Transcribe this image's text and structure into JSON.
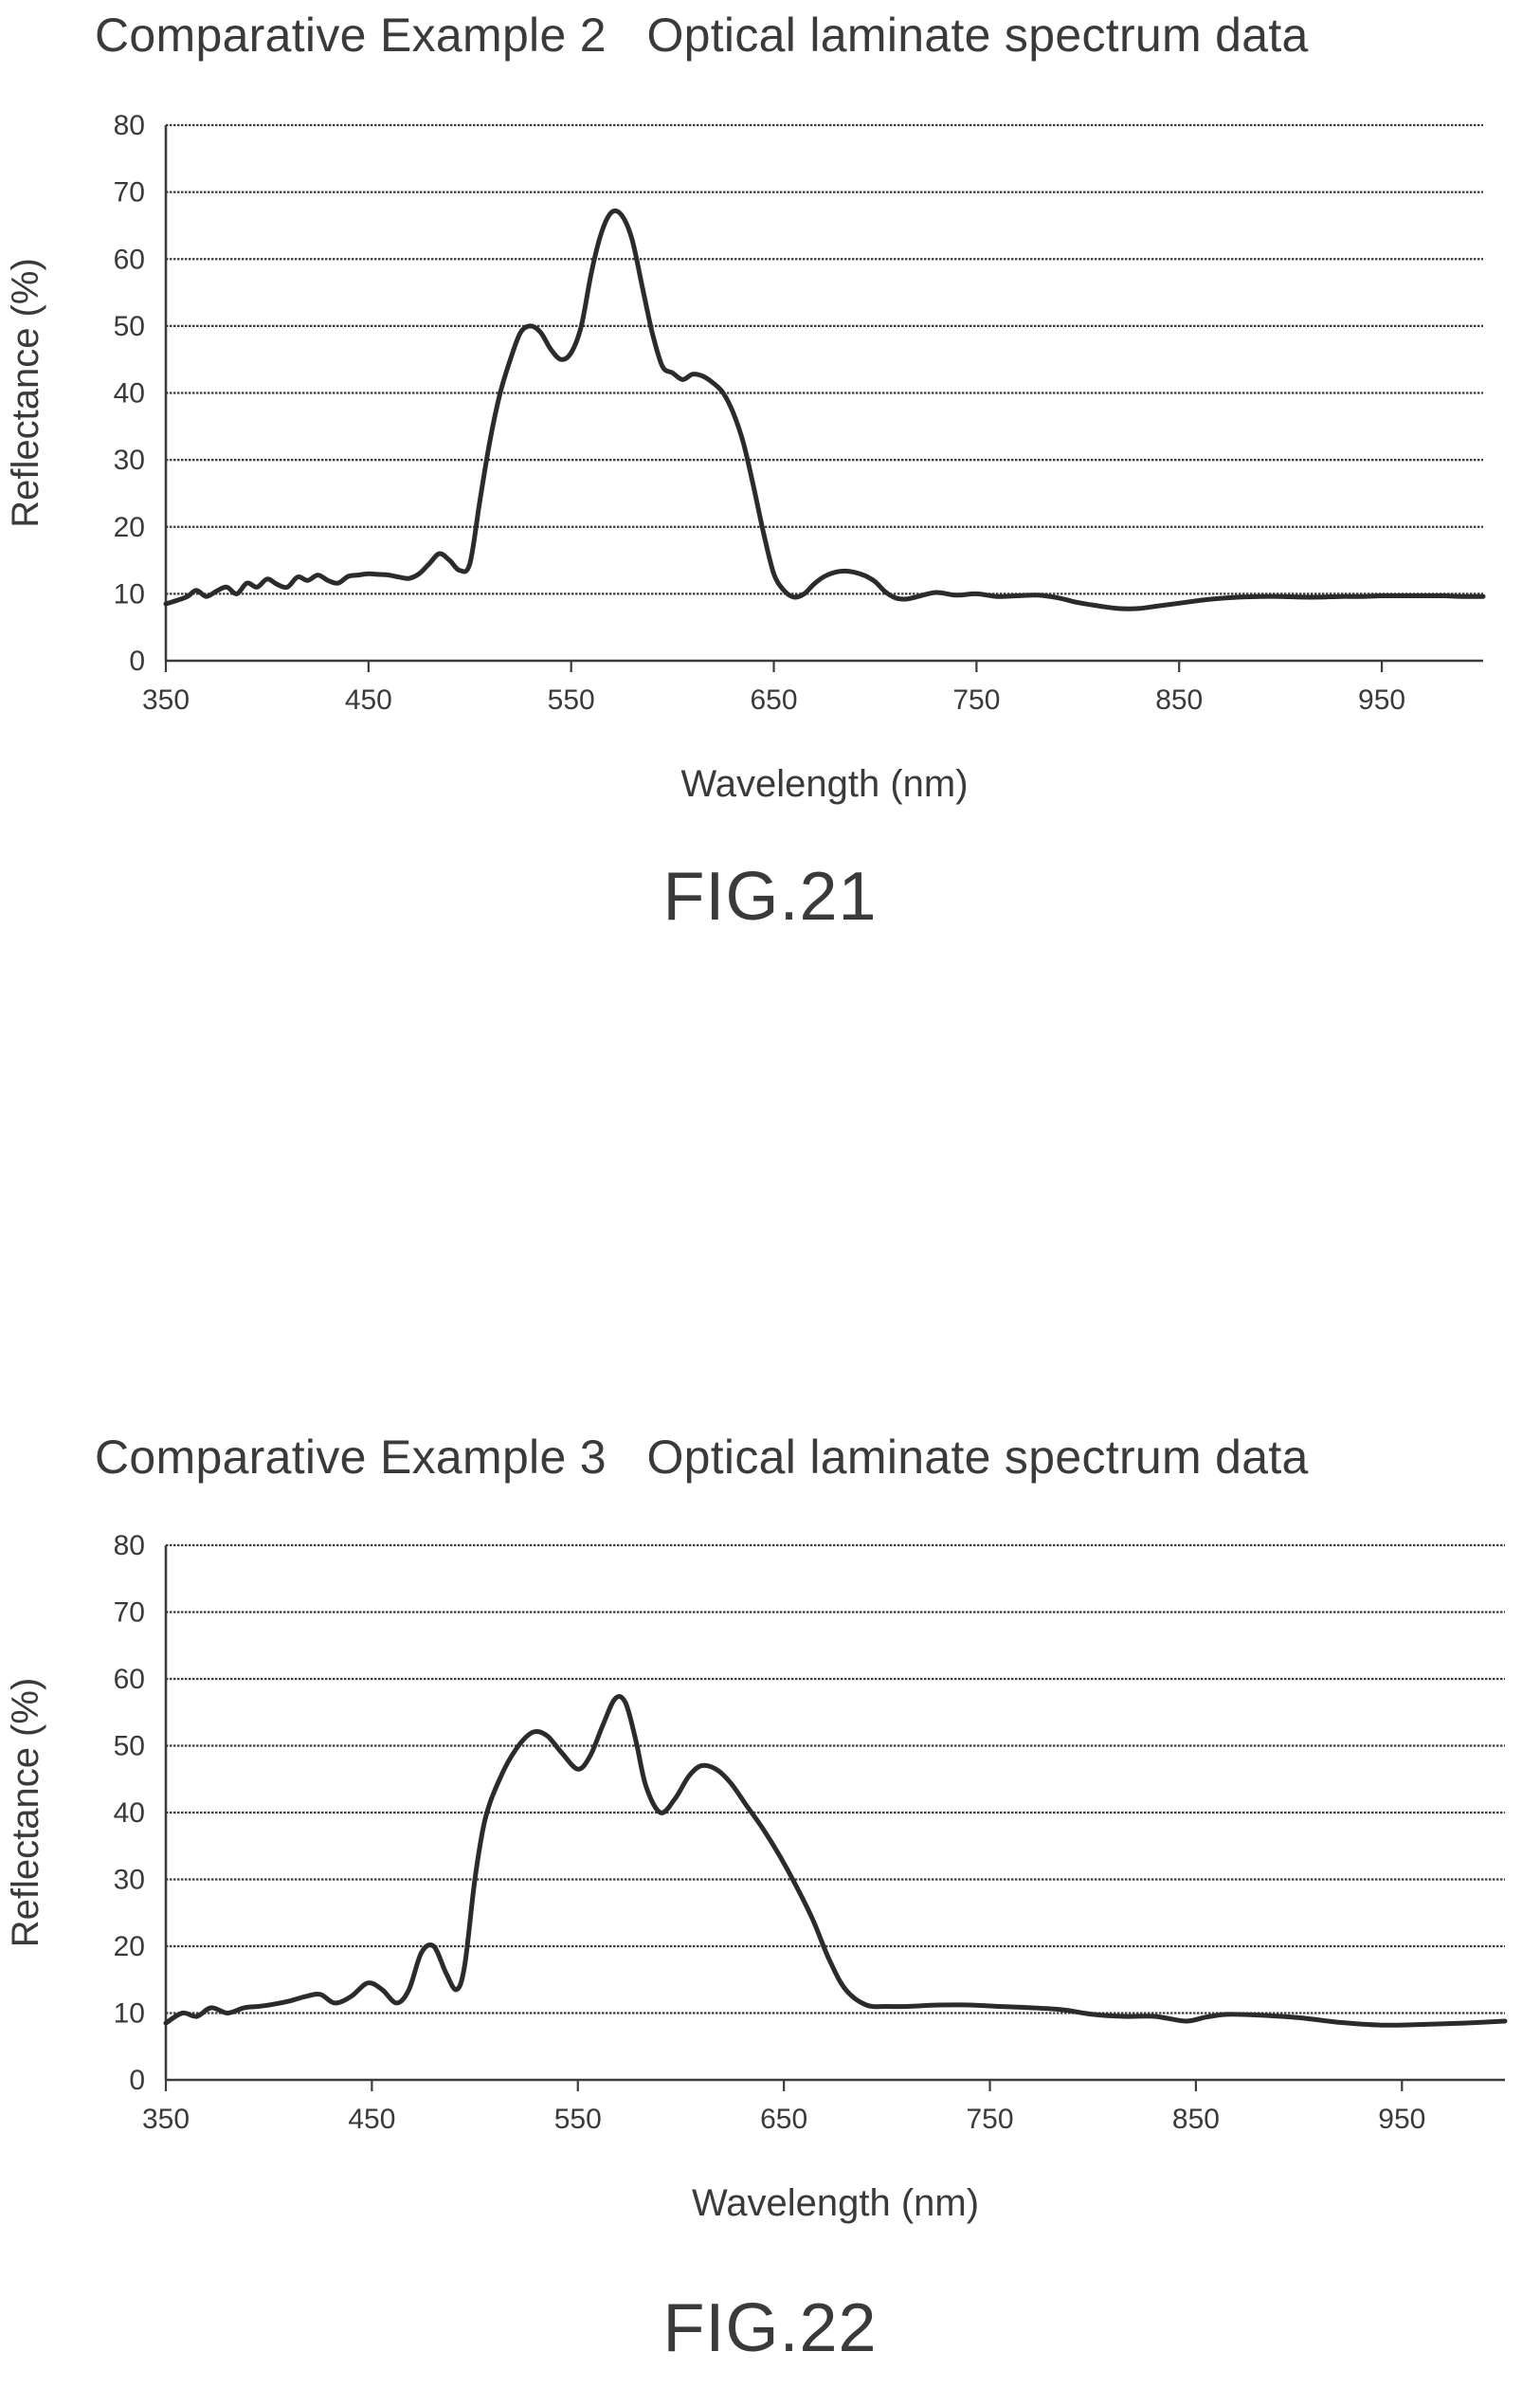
{
  "figures": [
    {
      "title": "Comparative Example 2   Optical laminate spectrum data",
      "figure_label": "FIG.21"
    },
    {
      "title": "Comparative Example 3   Optical laminate spectrum data",
      "figure_label": "FIG.22"
    }
  ],
  "colors": {
    "line": "#2b2b2b",
    "grid": "#3c3c3c",
    "text": "#3a3a3a"
  },
  "chart_data": [
    {
      "type": "line",
      "title": "Comparative Example 2   Optical laminate spectrum data",
      "xlabel": "Wavelength (nm)",
      "ylabel": "Reflectance (%)",
      "xlim": [
        350,
        1000
      ],
      "ylim": [
        0,
        80
      ],
      "xticks": [
        350,
        450,
        550,
        650,
        750,
        850,
        950
      ],
      "yticks": [
        0,
        10,
        20,
        30,
        40,
        50,
        60,
        70,
        80
      ],
      "grid": true,
      "legend": "none",
      "series": [
        {
          "x": [
            350,
            360,
            365,
            370,
            375,
            380,
            385,
            390,
            395,
            400,
            405,
            410,
            415,
            420,
            425,
            430,
            435,
            440,
            445,
            450,
            455,
            460,
            465,
            470,
            475,
            480,
            485,
            490,
            495,
            500,
            505,
            510,
            515,
            520,
            525,
            530,
            535,
            540,
            545,
            550,
            555,
            560,
            565,
            570,
            575,
            580,
            585,
            590,
            595,
            600,
            605,
            610,
            615,
            620,
            625,
            630,
            635,
            640,
            645,
            650,
            655,
            660,
            665,
            670,
            675,
            680,
            685,
            690,
            695,
            700,
            705,
            710,
            715,
            720,
            730,
            740,
            750,
            760,
            770,
            780,
            790,
            800,
            810,
            820,
            830,
            840,
            850,
            860,
            870,
            880,
            890,
            900,
            910,
            920,
            930,
            940,
            950,
            960,
            970,
            980,
            990,
            1000
          ],
          "y": [
            8.5,
            9.5,
            10.5,
            9.6,
            10.4,
            11,
            10,
            11.6,
            11,
            12.2,
            11.4,
            11,
            12.5,
            12,
            12.8,
            12,
            11.6,
            12.6,
            12.8,
            13,
            12.9,
            12.8,
            12.5,
            12.3,
            13,
            14.5,
            16,
            15,
            13.5,
            14.5,
            24,
            33,
            40,
            45,
            49,
            50,
            49,
            46.5,
            45,
            46,
            50,
            58,
            64,
            67,
            66.5,
            63,
            56,
            49,
            44,
            43,
            42,
            42.8,
            42.5,
            41.5,
            40,
            37,
            32.5,
            26,
            19,
            13,
            10.5,
            9.5,
            10,
            11.5,
            12.6,
            13.2,
            13.4,
            13.2,
            12.7,
            11.8,
            10.3,
            9.4,
            9.2,
            9.5,
            10.2,
            9.8,
            10,
            9.6,
            9.7,
            9.8,
            9.4,
            8.7,
            8.2,
            7.8,
            7.8,
            8.2,
            8.6,
            9,
            9.3,
            9.5,
            9.6,
            9.6,
            9.5,
            9.5,
            9.6,
            9.6,
            9.7,
            9.7,
            9.7,
            9.7,
            9.6,
            9.6
          ]
        }
      ]
    },
    {
      "type": "line",
      "title": "Comparative Example 3   Optical laminate spectrum data",
      "xlabel": "Wavelength (nm)",
      "ylabel": "Reflectance (%)",
      "xlim": [
        350,
        1000
      ],
      "ylim": [
        0,
        80
      ],
      "xticks": [
        350,
        450,
        550,
        650,
        750,
        850,
        950
      ],
      "yticks": [
        0,
        10,
        20,
        30,
        40,
        50,
        60,
        70,
        80
      ],
      "grid": true,
      "legend": "none",
      "series": [
        {
          "x": [
            350,
            358,
            365,
            372,
            380,
            388,
            395,
            402,
            410,
            418,
            425,
            432,
            440,
            448,
            455,
            462,
            468,
            474,
            480,
            486,
            491,
            495,
            500,
            505,
            512,
            520,
            528,
            535,
            542,
            550,
            556,
            562,
            568,
            573,
            578,
            583,
            590,
            597,
            604,
            610,
            617,
            624,
            632,
            640,
            648,
            656,
            664,
            672,
            680,
            690,
            700,
            710,
            725,
            740,
            755,
            770,
            785,
            800,
            815,
            830,
            845,
            855,
            865,
            880,
            900,
            920,
            940,
            960,
            980,
            1000
          ],
          "y": [
            8.5,
            10,
            9.5,
            10.8,
            10,
            10.8,
            11,
            11.3,
            11.8,
            12.5,
            12.8,
            11.5,
            12.5,
            14.5,
            13.5,
            11.5,
            13.5,
            19,
            20,
            16,
            13.5,
            17,
            30,
            39,
            45,
            49.5,
            52,
            51.5,
            49,
            46.5,
            48.5,
            53,
            57,
            56.5,
            51,
            44,
            40,
            42,
            45.5,
            47,
            46.5,
            44.5,
            41,
            37.5,
            33.5,
            29,
            24,
            18,
            13.5,
            11.2,
            11,
            11,
            11.2,
            11.2,
            11,
            10.8,
            10.5,
            9.8,
            9.5,
            9.5,
            8.8,
            9.4,
            9.8,
            9.7,
            9.3,
            8.6,
            8.2,
            8.3,
            8.5,
            8.8
          ]
        }
      ]
    }
  ]
}
